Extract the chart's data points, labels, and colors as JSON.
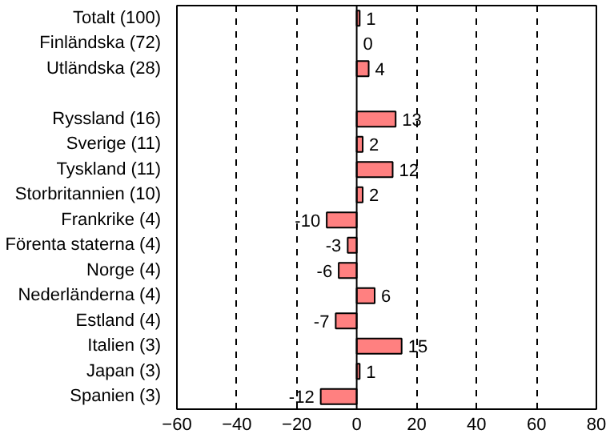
{
  "chart_data": {
    "type": "bar",
    "orientation": "horizontal",
    "categories": [
      "Totalt (100)",
      "Finländska (72)",
      "Utländska (28)",
      null,
      "Ryssland (16)",
      "Sverige (11)",
      "Tyskland (11)",
      "Storbritannien (10)",
      "Frankrike (4)",
      "Förenta staterna (4)",
      "Norge (4)",
      "Nederländerna (4)",
      "Estland (4)",
      "Italien (3)",
      "Japan (3)",
      "Spanien (3)"
    ],
    "values": [
      1,
      0,
      4,
      null,
      13,
      2,
      12,
      2,
      -10,
      -3,
      -6,
      6,
      -7,
      15,
      1,
      -12
    ],
    "color": "#ff8080",
    "xlim": [
      -60,
      80
    ],
    "xticks": [
      -60,
      -40,
      -20,
      0,
      20,
      40,
      60,
      80
    ],
    "grid": "x",
    "data_labels": true
  }
}
